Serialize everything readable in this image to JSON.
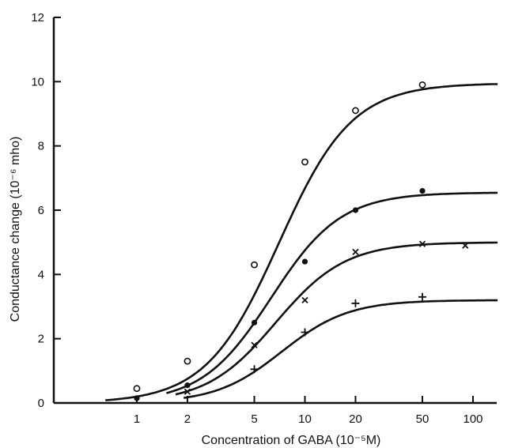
{
  "chart_data": {
    "type": "scatter",
    "title": "",
    "xlabel": "Concentration of GABA (10⁻⁵M)",
    "ylabel": "Conductance change (10⁻⁶ mho)",
    "x_scale": "log",
    "xlim": [
      0.5,
      150
    ],
    "ylim": [
      0,
      12
    ],
    "x_ticks": [
      1,
      2,
      5,
      10,
      20,
      50,
      100
    ],
    "x_tick_labels": [
      "1",
      "2",
      "5",
      "10",
      "20",
      "50",
      "100"
    ],
    "y_ticks": [
      0,
      2,
      4,
      6,
      8,
      10,
      12
    ],
    "y_tick_labels": [
      "0",
      "2",
      "4",
      "6",
      "8",
      "10",
      "12"
    ],
    "grid": false,
    "series": [
      {
        "marker": "open-circle",
        "points": [
          {
            "x": 1,
            "y": 0.45
          },
          {
            "x": 2,
            "y": 1.3
          },
          {
            "x": 5,
            "y": 4.3
          },
          {
            "x": 10,
            "y": 7.5
          },
          {
            "x": 20,
            "y": 9.1
          },
          {
            "x": 50,
            "y": 9.9
          }
        ],
        "curve": {
          "max": 9.95,
          "ec50": 7.0,
          "hill": 2.0,
          "x_from": 0.65,
          "x_to": 140
        }
      },
      {
        "marker": "filled-circle",
        "points": [
          {
            "x": 1,
            "y": 0.15
          },
          {
            "x": 2,
            "y": 0.55
          },
          {
            "x": 5,
            "y": 2.5
          },
          {
            "x": 10,
            "y": 4.4
          },
          {
            "x": 20,
            "y": 6.0
          },
          {
            "x": 50,
            "y": 6.6
          }
        ],
        "curve": {
          "max": 6.55,
          "ec50": 6.3,
          "hill": 2.1,
          "x_from": 1.5,
          "x_to": 140
        }
      },
      {
        "marker": "cross",
        "points": [
          {
            "x": 2,
            "y": 0.35
          },
          {
            "x": 5,
            "y": 1.8
          },
          {
            "x": 10,
            "y": 3.2
          },
          {
            "x": 20,
            "y": 4.7
          },
          {
            "x": 50,
            "y": 4.95
          },
          {
            "x": 90,
            "y": 4.9
          }
        ],
        "curve": {
          "max": 5.0,
          "ec50": 6.7,
          "hill": 2.1,
          "x_from": 1.7,
          "x_to": 140
        }
      },
      {
        "marker": "plus",
        "points": [
          {
            "x": 5,
            "y": 1.05
          },
          {
            "x": 10,
            "y": 2.2
          },
          {
            "x": 20,
            "y": 3.1
          },
          {
            "x": 50,
            "y": 3.3
          }
        ],
        "curve": {
          "max": 3.2,
          "ec50": 7.3,
          "hill": 2.2,
          "x_from": 1.9,
          "x_to": 140
        }
      }
    ]
  }
}
